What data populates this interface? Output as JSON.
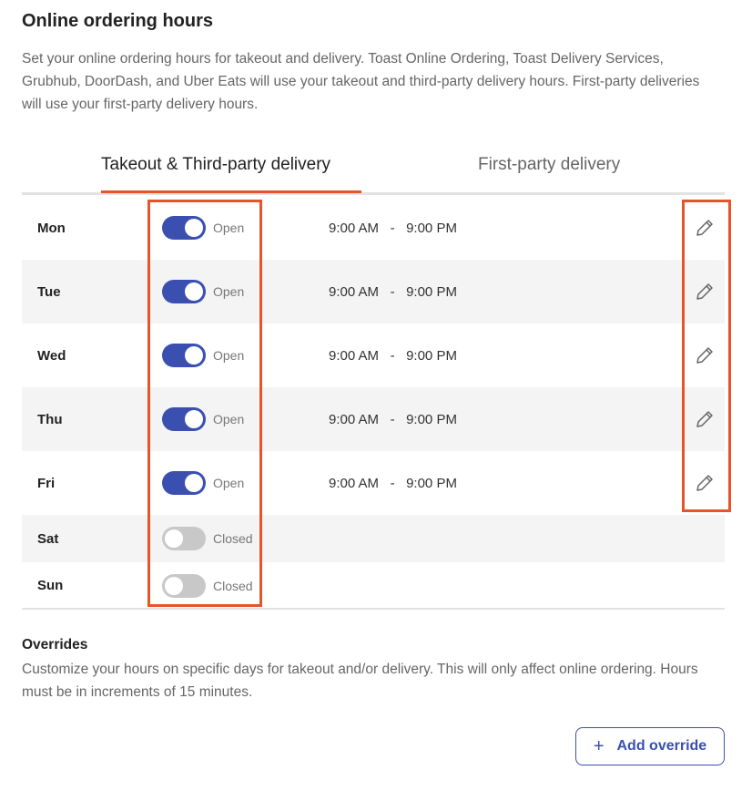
{
  "title": "Online ordering hours",
  "description": "Set your online ordering hours for takeout and delivery. Toast Online Ordering, Toast Delivery Services, Grubhub, DoorDash, and Uber Eats will use your takeout and third-party delivery hours. First-party deliveries will use your first-party delivery hours.",
  "tabs": [
    {
      "label": "Takeout & Third-party delivery",
      "active": true
    },
    {
      "label": "First-party delivery",
      "active": false
    }
  ],
  "days": [
    {
      "day": "Mon",
      "open": true,
      "status": "Open",
      "start": "9:00 AM",
      "sep": "-",
      "end": "9:00 PM"
    },
    {
      "day": "Tue",
      "open": true,
      "status": "Open",
      "start": "9:00 AM",
      "sep": "-",
      "end": "9:00 PM"
    },
    {
      "day": "Wed",
      "open": true,
      "status": "Open",
      "start": "9:00 AM",
      "sep": "-",
      "end": "9:00 PM"
    },
    {
      "day": "Thu",
      "open": true,
      "status": "Open",
      "start": "9:00 AM",
      "sep": "-",
      "end": "9:00 PM"
    },
    {
      "day": "Fri",
      "open": true,
      "status": "Open",
      "start": "9:00 AM",
      "sep": "-",
      "end": "9:00 PM"
    },
    {
      "day": "Sat",
      "open": false,
      "status": "Closed"
    },
    {
      "day": "Sun",
      "open": false,
      "status": "Closed"
    }
  ],
  "overrides": {
    "title": "Overrides",
    "description": "Customize your hours on specific days for takeout and/or delivery. This will only affect online ordering. Hours must be in increments of 15 minutes.",
    "add_label": "Add override",
    "add_icon": "plus-icon"
  },
  "colors": {
    "accent": "#3b4fb1",
    "highlight": "#e8542a",
    "toggle_off": "#c8c8c8"
  }
}
